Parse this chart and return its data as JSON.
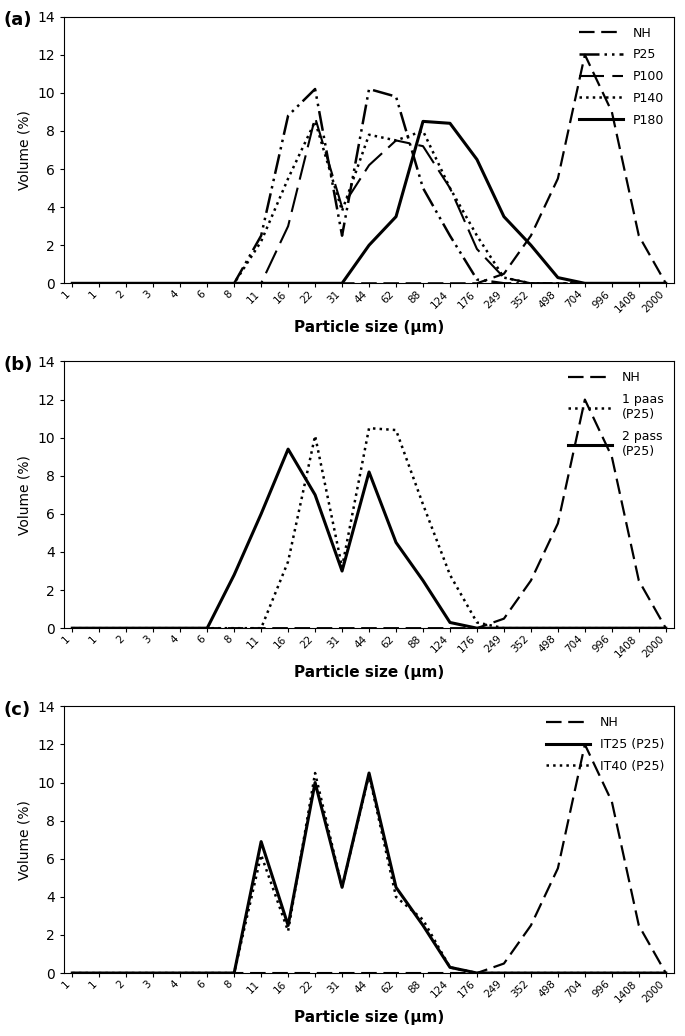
{
  "x_labels": [
    "1",
    "1",
    "2",
    "3",
    "4",
    "6",
    "8",
    "11",
    "16",
    "22",
    "31",
    "44",
    "62",
    "88",
    "124",
    "176",
    "249",
    "352",
    "498",
    "704",
    "996",
    "1408",
    "2000"
  ],
  "panel_a": {
    "NH": [
      0,
      0,
      0,
      0,
      0,
      0,
      0,
      0,
      0,
      0,
      0,
      0,
      0,
      0,
      0,
      0,
      0.5,
      2.5,
      5.5,
      12.0,
      9.0,
      2.5,
      0.0
    ],
    "P25": [
      0,
      0,
      0,
      0,
      0,
      0,
      0,
      2.5,
      8.8,
      10.2,
      2.5,
      10.2,
      9.8,
      5.0,
      2.5,
      0.2,
      0,
      0,
      0,
      0,
      0,
      0,
      0
    ],
    "P100": [
      0,
      0,
      0,
      0,
      0,
      0,
      0,
      0,
      3.0,
      8.7,
      4.0,
      6.2,
      7.5,
      7.2,
      5.0,
      1.8,
      0.3,
      0,
      0,
      0,
      0,
      0,
      0
    ],
    "P140": [
      0,
      0,
      0,
      0,
      0,
      0,
      0,
      2.2,
      5.5,
      8.5,
      3.8,
      7.8,
      7.5,
      8.0,
      5.0,
      2.5,
      0.3,
      0,
      0,
      0,
      0,
      0,
      0
    ],
    "P180": [
      0,
      0,
      0,
      0,
      0,
      0,
      0,
      0,
      0,
      0,
      0,
      2.0,
      3.5,
      8.5,
      8.4,
      6.5,
      3.5,
      2.0,
      0.3,
      0,
      0,
      0,
      0
    ]
  },
  "panel_b": {
    "NH": [
      0,
      0,
      0,
      0,
      0,
      0,
      0,
      0,
      0,
      0,
      0,
      0,
      0,
      0,
      0,
      0,
      0.5,
      2.5,
      5.5,
      12.0,
      9.0,
      2.5,
      0.0
    ],
    "1pass_P25": [
      0,
      0,
      0,
      0,
      0,
      0,
      0,
      0,
      3.5,
      10.1,
      3.2,
      10.5,
      10.4,
      6.5,
      2.8,
      0.3,
      0,
      0,
      0,
      0,
      0,
      0,
      0
    ],
    "2pass_P25": [
      0,
      0,
      0,
      0,
      0,
      0,
      2.8,
      6.0,
      9.4,
      7.0,
      3.0,
      8.2,
      4.5,
      2.5,
      0.3,
      0,
      0,
      0,
      0,
      0,
      0,
      0,
      0
    ]
  },
  "panel_c": {
    "NH": [
      0,
      0,
      0,
      0,
      0,
      0,
      0,
      0,
      0,
      0,
      0,
      0,
      0,
      0,
      0,
      0,
      0.5,
      2.5,
      5.5,
      12.0,
      9.0,
      2.5,
      0.0
    ],
    "IT25_P25": [
      0,
      0,
      0,
      0,
      0,
      0,
      0,
      6.9,
      2.5,
      10.0,
      4.5,
      10.5,
      4.5,
      2.5,
      0.3,
      0,
      0,
      0,
      0,
      0,
      0,
      0,
      0
    ],
    "IT40_P25": [
      0,
      0,
      0,
      0,
      0,
      0,
      0,
      6.2,
      2.2,
      10.5,
      4.5,
      10.4,
      4.0,
      2.8,
      0.3,
      0,
      0,
      0,
      0,
      0,
      0,
      0,
      0
    ]
  },
  "ylim": [
    0,
    14
  ],
  "yticks": [
    0,
    2,
    4,
    6,
    8,
    10,
    12,
    14
  ],
  "ylabel": "Volume (%)",
  "xlabel": "Particle size (μm)"
}
